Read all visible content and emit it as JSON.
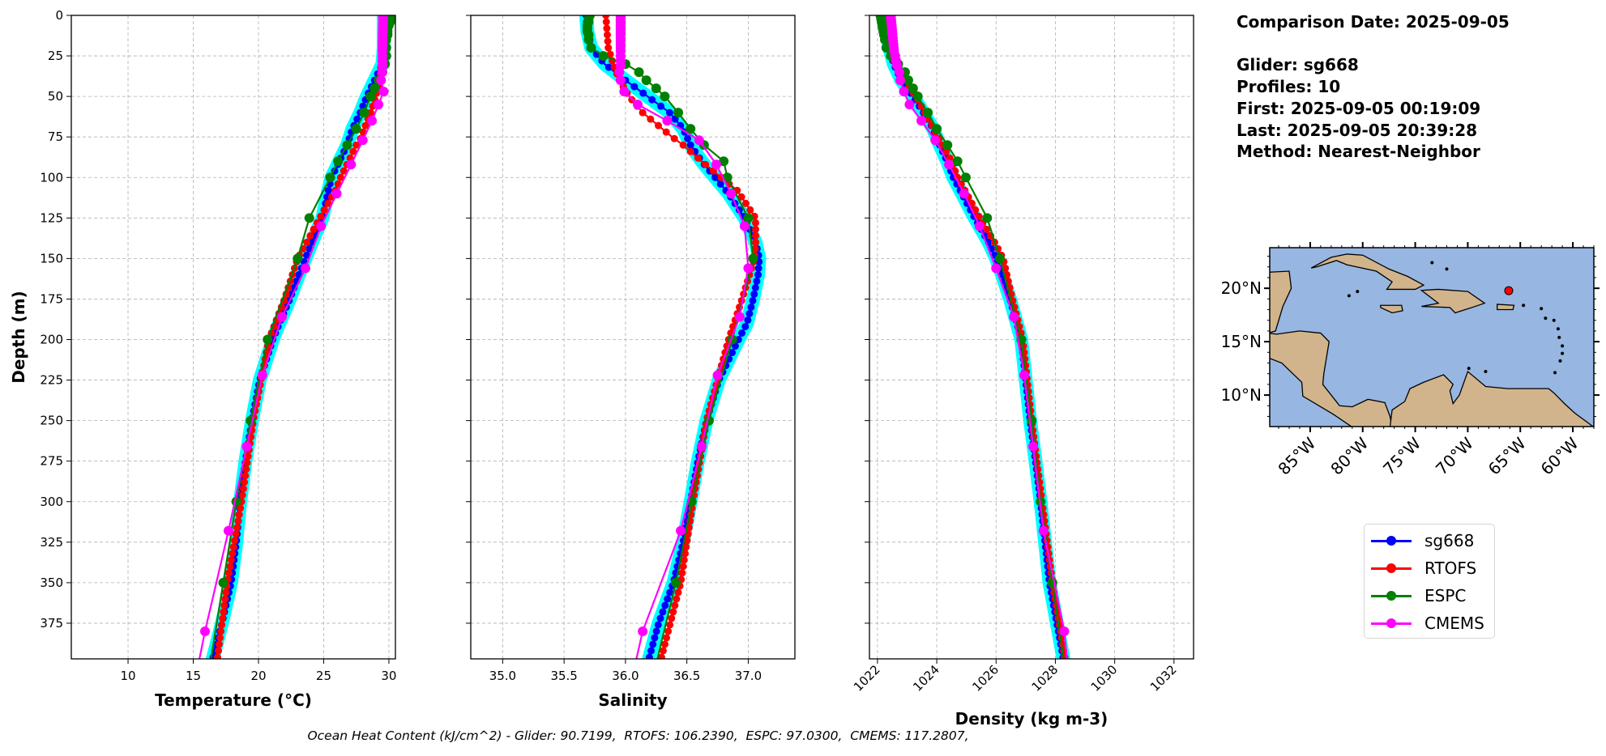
{
  "info": {
    "comparison_date": "Comparison Date: 2025-09-05",
    "glider": "Glider: sg668",
    "profiles": "Profiles: 10",
    "first": "First: 2025-09-05 00:19:09",
    "last": "Last: 2025-09-05 20:39:28",
    "method": "Method: Nearest-Neighbor"
  },
  "footer": "Ocean Heat Content (kJ/cm^2) - Glider: 90.7199,  RTOFS: 106.2390,  ESPC: 97.0300,  CMEMS: 117.2807,",
  "legend": [
    {
      "label": "sg668",
      "color": "#0000ff"
    },
    {
      "label": "RTOFS",
      "color": "#ff0000"
    },
    {
      "label": "ESPC",
      "color": "#008000"
    },
    {
      "label": "CMEMS",
      "color": "#ff00ff"
    }
  ],
  "chart_data": [
    {
      "type": "line",
      "variable": "temp",
      "xlabel": "Temperature (°C)",
      "ylabel": "Depth (m)",
      "xlim": [
        5.65,
        30.5
      ],
      "ylim": [
        397,
        0
      ],
      "xticks": [
        10,
        15,
        20,
        25,
        30
      ],
      "yticks": [
        0,
        25,
        50,
        75,
        100,
        125,
        150,
        175,
        200,
        225,
        250,
        275,
        300,
        325,
        350,
        375
      ],
      "grid": true
    },
    {
      "type": "line",
      "variable": "sal",
      "xlabel": "Salinity",
      "xlim": [
        34.74,
        37.38
      ],
      "ylim": [
        397,
        0
      ],
      "xticks": [
        "35.0",
        "35.5",
        "36.0",
        "36.5",
        "37.0"
      ],
      "grid": true
    },
    {
      "type": "line",
      "variable": "dens",
      "xlabel": "Density (kg m-3)",
      "xlim": [
        1021.73,
        1032.66
      ],
      "ylim": [
        397,
        0
      ],
      "xticks": [
        1022,
        1024,
        1026,
        1028,
        1030,
        1032
      ],
      "xtick_rotation": 45,
      "grid": true
    }
  ],
  "profiles_color": "#00ffff",
  "series": [
    {
      "name": "sg668",
      "color": "#0000ff",
      "dense_markers": true,
      "depth": [
        0,
        10,
        20,
        30,
        40,
        50,
        60,
        70,
        80,
        90,
        100,
        110,
        125,
        140,
        150,
        160,
        175,
        190,
        200,
        225,
        250,
        275,
        300,
        325,
        350,
        375,
        400
      ],
      "temp": [
        29.6,
        29.6,
        29.6,
        29.5,
        28.9,
        28.3,
        27.8,
        27.2,
        26.8,
        26.2,
        25.6,
        25.3,
        24.9,
        24.1,
        23.6,
        23.1,
        22.4,
        21.6,
        21.1,
        20.1,
        19.5,
        19.0,
        18.6,
        18.3,
        17.9,
        17.2,
        16.4
      ],
      "sal": [
        35.68,
        35.69,
        35.72,
        35.83,
        36.0,
        36.18,
        36.36,
        36.47,
        36.53,
        36.62,
        36.73,
        36.84,
        36.97,
        37.06,
        37.09,
        37.08,
        37.04,
        36.99,
        36.92,
        36.76,
        36.66,
        36.59,
        36.53,
        36.47,
        36.39,
        36.27,
        36.18
      ],
      "dens": [
        1022.27,
        1022.3,
        1022.4,
        1022.55,
        1022.8,
        1023.2,
        1023.55,
        1023.88,
        1024.1,
        1024.35,
        1024.56,
        1024.85,
        1025.28,
        1025.75,
        1026.0,
        1026.2,
        1026.47,
        1026.7,
        1026.85,
        1027.0,
        1027.15,
        1027.33,
        1027.5,
        1027.65,
        1027.8,
        1028.05,
        1028.3
      ]
    },
    {
      "name": "RTOFS",
      "color": "#ff0000",
      "dense_markers": true,
      "depth": [
        0,
        10,
        20,
        30,
        40,
        50,
        60,
        70,
        75,
        80,
        90,
        100,
        108,
        125,
        140,
        150,
        175,
        200,
        250,
        300,
        350,
        400
      ],
      "temp": [
        29.5,
        29.5,
        29.5,
        29.4,
        29.3,
        29.0,
        28.6,
        28.1,
        27.9,
        27.5,
        26.9,
        26.3,
        25.9,
        24.7,
        23.7,
        23.0,
        22.0,
        20.8,
        19.6,
        18.7,
        17.6,
        16.8
      ],
      "sal": [
        35.84,
        35.85,
        35.86,
        35.9,
        35.95,
        36.03,
        36.14,
        36.3,
        36.38,
        36.47,
        36.62,
        36.78,
        36.91,
        37.06,
        37.06,
        37.05,
        36.95,
        36.84,
        36.66,
        36.55,
        36.45,
        36.28
      ],
      "dens": [
        1022.35,
        1022.36,
        1022.4,
        1022.6,
        1022.9,
        1023.3,
        1023.6,
        1023.9,
        1024.05,
        1024.2,
        1024.5,
        1024.7,
        1024.95,
        1025.45,
        1025.95,
        1026.24,
        1026.55,
        1026.9,
        1027.2,
        1027.55,
        1027.9,
        1028.35
      ]
    },
    {
      "name": "ESPC",
      "color": "#008000",
      "dense_markers": false,
      "depth": [
        0,
        2,
        4,
        6,
        8,
        10,
        12,
        15,
        20,
        25,
        30,
        35,
        40,
        45,
        50,
        60,
        70,
        80,
        90,
        100,
        125,
        150,
        200,
        250,
        300,
        350,
        400
      ],
      "temp": [
        30.3,
        30.2,
        30.1,
        30.0,
        29.9,
        29.9,
        29.9,
        29.8,
        29.8,
        29.8,
        29.7,
        29.5,
        29.2,
        28.9,
        28.6,
        28.1,
        27.5,
        26.8,
        26.1,
        25.5,
        23.9,
        23.0,
        20.7,
        19.4,
        18.3,
        17.3,
        16.3
      ],
      "sal": [
        35.71,
        35.7,
        35.7,
        35.69,
        35.69,
        35.69,
        35.7,
        35.7,
        35.72,
        35.82,
        36.0,
        36.11,
        36.17,
        36.25,
        36.32,
        36.43,
        36.53,
        36.64,
        36.8,
        36.83,
        37.0,
        37.04,
        36.87,
        36.68,
        36.54,
        36.41,
        36.25
      ],
      "dens": [
        1022.1,
        1022.12,
        1022.14,
        1022.16,
        1022.18,
        1022.2,
        1022.22,
        1022.25,
        1022.3,
        1022.45,
        1022.7,
        1022.93,
        1023.04,
        1023.2,
        1023.36,
        1023.7,
        1024.0,
        1024.36,
        1024.7,
        1024.98,
        1025.7,
        1026.13,
        1026.85,
        1027.2,
        1027.5,
        1027.9,
        1028.3
      ]
    },
    {
      "name": "CMEMS",
      "color": "#ff00ff",
      "dense_markers": false,
      "depth": [
        0,
        1,
        2,
        3,
        4,
        5,
        6,
        7,
        8,
        9,
        10,
        11,
        12,
        14,
        16,
        18,
        20,
        22,
        25,
        28,
        31,
        35,
        40,
        47,
        55,
        65,
        77,
        92,
        110,
        130,
        156,
        186,
        222,
        266,
        318,
        380,
        400
      ],
      "temp": [
        29.55,
        29.55,
        29.55,
        29.55,
        29.55,
        29.55,
        29.54,
        29.54,
        29.54,
        29.53,
        29.53,
        29.53,
        29.52,
        29.52,
        29.51,
        29.51,
        29.5,
        29.5,
        29.5,
        29.5,
        29.5,
        29.5,
        29.4,
        29.6,
        29.2,
        28.7,
        28.0,
        27.1,
        26.0,
        24.8,
        23.6,
        21.8,
        20.3,
        19.1,
        17.7,
        15.9,
        15.4
      ],
      "sal": [
        35.96,
        35.96,
        35.96,
        35.96,
        35.96,
        35.96,
        35.96,
        35.96,
        35.96,
        35.96,
        35.96,
        35.96,
        35.96,
        35.96,
        35.96,
        35.96,
        35.96,
        35.96,
        35.96,
        35.96,
        35.96,
        35.95,
        35.96,
        35.99,
        36.1,
        36.34,
        36.6,
        36.74,
        36.86,
        36.97,
        37.0,
        36.93,
        36.75,
        36.62,
        36.45,
        36.14,
        36.08
      ],
      "dens": [
        1022.45,
        1022.45,
        1022.46,
        1022.46,
        1022.47,
        1022.47,
        1022.48,
        1022.48,
        1022.49,
        1022.49,
        1022.5,
        1022.5,
        1022.51,
        1022.52,
        1022.53,
        1022.54,
        1022.55,
        1022.56,
        1022.6,
        1022.63,
        1022.66,
        1022.74,
        1022.77,
        1022.89,
        1023.08,
        1023.48,
        1023.95,
        1024.41,
        1024.92,
        1025.44,
        1026.0,
        1026.6,
        1026.95,
        1027.25,
        1027.6,
        1028.3,
        1028.4
      ]
    }
  ],
  "map": {
    "lon_range": [
      -88.85,
      -58.0
    ],
    "lat_range": [
      7.05,
      23.8
    ],
    "lon_ticks": [
      "85°W",
      "80°W",
      "75°W",
      "70°W",
      "65°W",
      "60°W"
    ],
    "lat_ticks": [
      "20°N",
      "15°N",
      "10°N"
    ],
    "ocean_color": "#97b6e1",
    "land_color": "#d2b48c",
    "glider_location": {
      "lon": -66.1,
      "lat": 19.77,
      "color": "#ff0000"
    }
  }
}
